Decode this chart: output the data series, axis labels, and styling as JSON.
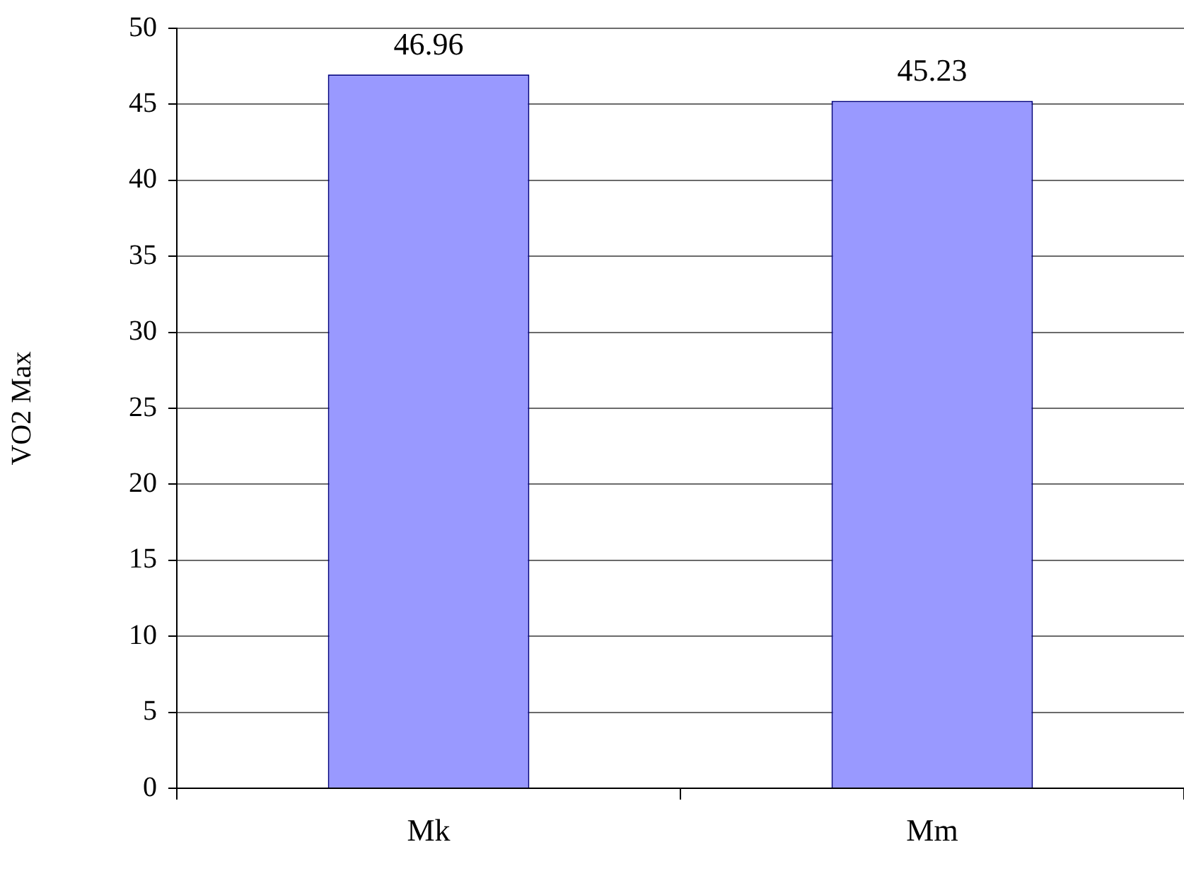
{
  "chart_data": {
    "type": "bar",
    "ylabel": "VO2 Max",
    "categories": [
      "Mk",
      "Mm"
    ],
    "values": [
      46.96,
      45.23
    ],
    "color": "#9999ff",
    "ylim": [
      0,
      50
    ],
    "yticks": [
      0,
      5,
      10,
      15,
      20,
      25,
      30,
      35,
      40,
      45,
      50
    ],
    "grid": "y",
    "data_labels": true,
    "legend": false
  }
}
